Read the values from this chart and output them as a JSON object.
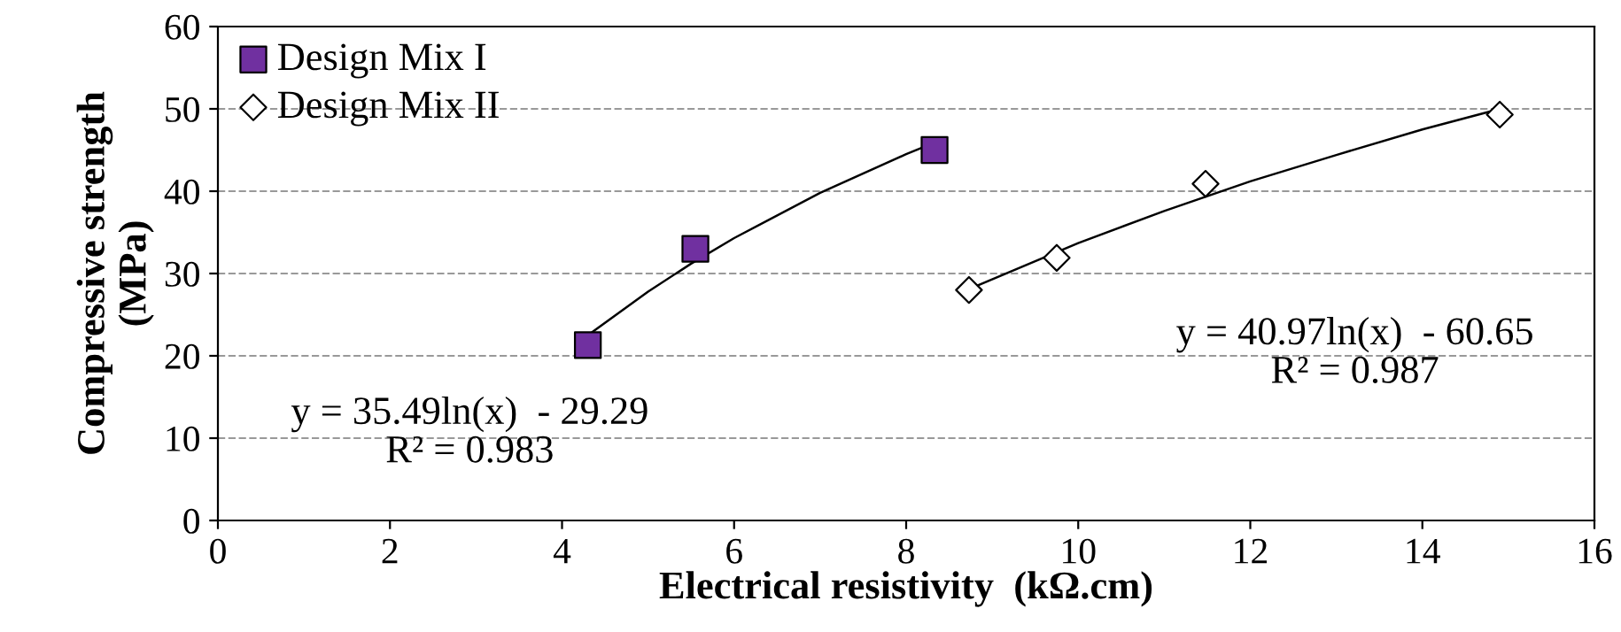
{
  "chart_data": {
    "type": "scatter",
    "xlabel": "Electrical resistivity  (kΩ.cm)",
    "ylabel": "Compressive strength\n(MPa)",
    "xlim": [
      0,
      16
    ],
    "xticks": [
      0,
      2,
      4,
      6,
      8,
      10,
      12,
      14,
      16
    ],
    "ylim": [
      0,
      60
    ],
    "yticks": [
      0,
      10,
      20,
      30,
      40,
      50,
      60
    ],
    "grid": "y",
    "legend": "top left",
    "series": [
      {
        "name": "Design Mix I",
        "color": "#7030a0",
        "marker": "square",
        "x": [
          4.3,
          5.55,
          8.33
        ],
        "values": [
          21.3,
          33.0,
          45.0
        ]
      },
      {
        "name": "Design Mix II",
        "color": "#ffffff",
        "marker": "diamond",
        "x": [
          8.73,
          9.75,
          11.48,
          14.9
        ],
        "values": [
          28.0,
          31.9,
          40.9,
          49.3
        ]
      },
      {
        "type": "line",
        "color": "#000000",
        "marker": "none",
        "x": [
          4.3,
          5.0,
          5.5,
          6.0,
          7.0,
          8.0,
          8.33
        ],
        "values": [
          22.5,
          27.8,
          31.2,
          34.3,
          39.8,
          44.5,
          45.9
        ]
      },
      {
        "type": "line",
        "color": "#000000",
        "marker": "none",
        "x": [
          8.73,
          10.0,
          11.0,
          12.0,
          13.0,
          14.0,
          14.9
        ],
        "values": [
          28.1,
          33.7,
          37.6,
          41.2,
          44.4,
          47.5,
          50.0
        ]
      }
    ],
    "annotations": [
      "y = 35.49ln(x)  - 29.29\nR² = 0.983",
      "y = 40.97ln(x)  - 60.65\nR² = 0.987"
    ]
  }
}
